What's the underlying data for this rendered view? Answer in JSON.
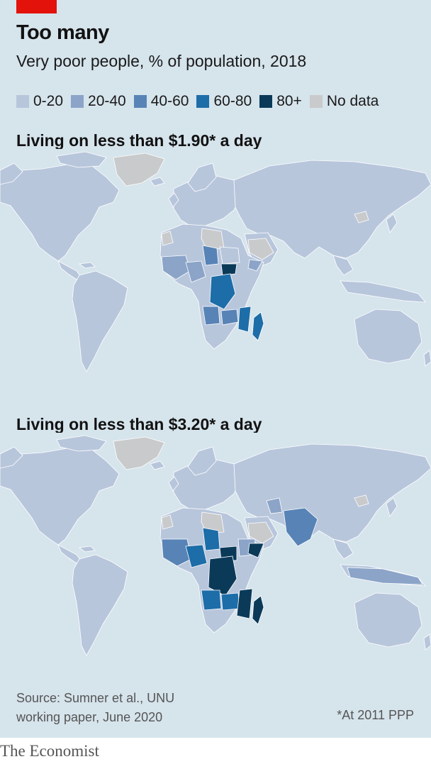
{
  "header": {
    "title": "Too many",
    "subtitle": "Very poor people, % of population, 2018"
  },
  "legend": [
    {
      "label": "0-20",
      "color": "#b8c6dc"
    },
    {
      "label": "20-40",
      "color": "#8ba4c8"
    },
    {
      "label": "40-60",
      "color": "#5883b6"
    },
    {
      "label": "60-80",
      "color": "#1d6da8"
    },
    {
      "label": "80+",
      "color": "#0b3a59"
    },
    {
      "label": "No data",
      "color": "#c9cacb"
    }
  ],
  "maps": [
    {
      "title": "Living on less than $1.90* a day"
    },
    {
      "title": "Living on less than $3.20* a day"
    }
  ],
  "colors": {
    "ocean": "#d6e4ec",
    "land": "#b8c6dc",
    "border": "#ffffff",
    "accent": "#e3120b"
  },
  "footer": {
    "source_line1": "Source: Sumner et al., UNU",
    "source_line2": "working paper, June 2020",
    "note": "*At 2011 PPP",
    "brand": "The Economist"
  }
}
